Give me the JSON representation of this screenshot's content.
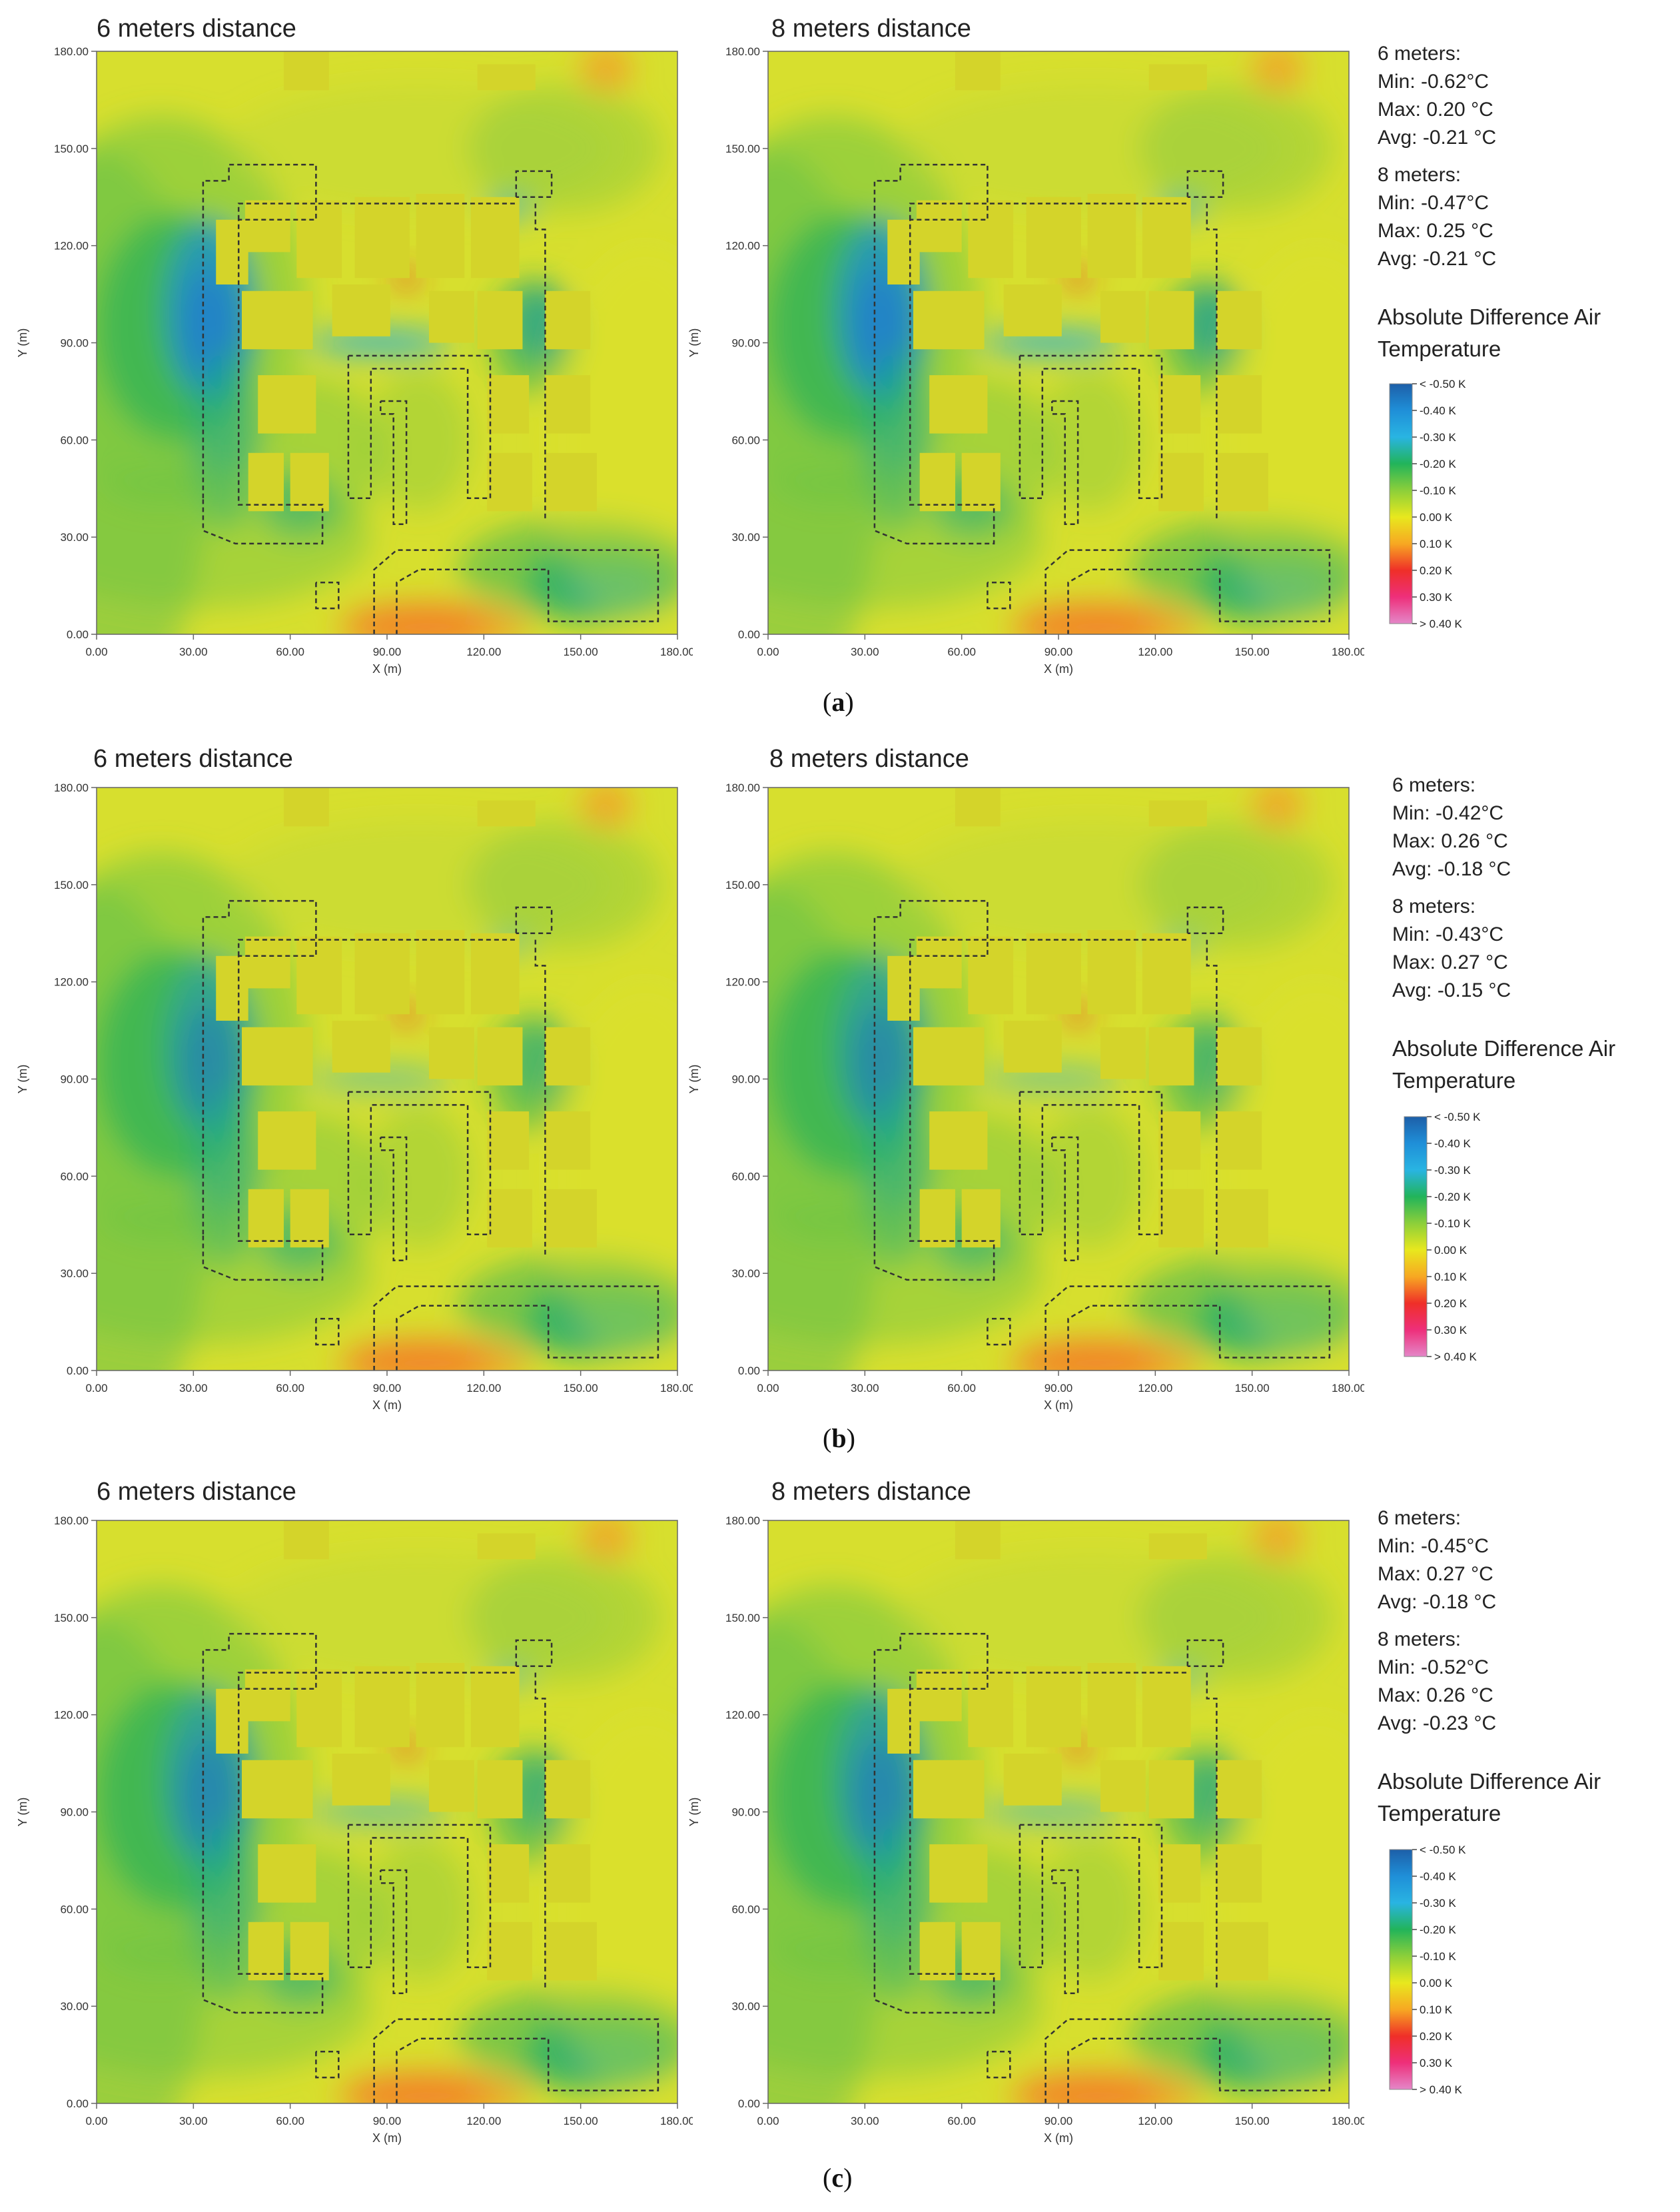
{
  "figure": {
    "panels": [
      {
        "caption_open": "(",
        "caption_letter": "a",
        "caption_close": ")",
        "left_title": "6 meters distance",
        "right_title": "8 meters distance",
        "stats": {
          "six_header": "6 meters:",
          "six_min": "Min: -0.62°C",
          "six_max": "Max: 0.20 °C",
          "six_avg": "Avg:  -0.21 °C",
          "eight_header": "8 meters:",
          "eight_min": "Min: -0.47°C",
          "eight_max": "Max: 0.25 °C",
          "eight_avg": "Avg:  -0.21 °C"
        },
        "legend_title_1": "Absolute Difference Air",
        "legend_title_2": "Temperature"
      },
      {
        "caption_open": "(",
        "caption_letter": "b",
        "caption_close": ")",
        "left_title": "6 meters distance",
        "right_title": "8 meters distance",
        "stats": {
          "six_header": "6 meters:",
          "six_min": "Min: -0.42°C",
          "six_max": "Max: 0.26 °C",
          "six_avg": "Avg:  -0.18 °C",
          "eight_header": "8 meters:",
          "eight_min": "Min: -0.43°C",
          "eight_max": "Max: 0.27 °C",
          "eight_avg": "Avg:  -0.15 °C"
        },
        "legend_title_1": "Absolute Difference Air",
        "legend_title_2": "Temperature"
      },
      {
        "caption_open": "(",
        "caption_letter": "c",
        "caption_close": ")",
        "left_title": "6 meters distance",
        "right_title": "8 meters distance",
        "stats": {
          "six_header": "6 meters:",
          "six_min": "Min: -0.45°C",
          "six_max": "Max: 0.27 °C",
          "six_avg": "Avg:  -0.18 °C",
          "eight_header": "8 meters:",
          "eight_min": "Min: -0.52°C",
          "eight_max": "Max: 0.26 °C",
          "eight_avg": "Avg:  -0.23 °C"
        },
        "legend_title_1": "Absolute Difference Air",
        "legend_title_2": "Temperature"
      }
    ]
  },
  "chart_data": {
    "type": "heatmap",
    "title": "Absolute Difference Air Temperature",
    "xlabel": "X (m)",
    "ylabel": "Y (m)",
    "xlim": [
      0,
      180
    ],
    "ylim": [
      0,
      180
    ],
    "x_ticks": [
      "0.00",
      "30.00",
      "60.00",
      "90.00",
      "120.00",
      "150.00",
      "180.00"
    ],
    "y_ticks": [
      "0.00",
      "30.00",
      "60.00",
      "90.00",
      "120.00",
      "150.00",
      "180.00"
    ],
    "legend": {
      "labels": [
        "< -0.50 K",
        "-0.40  K",
        "-0.30  K",
        "-0.20  K",
        "-0.10  K",
        "0.00  K",
        "0.10  K",
        "0.20  K",
        "0.30  K",
        "> 0.40 K"
      ],
      "colors": [
        "#1d5fa8",
        "#1f8fd8",
        "#29b4e2",
        "#22b45a",
        "#8ccf3a",
        "#e8e81e",
        "#f7a822",
        "#ef2f28",
        "#ee2f7a",
        "#e487c8"
      ]
    },
    "maps": [
      {
        "panel": "a",
        "distance": "6 meters",
        "min": -0.62,
        "max": 0.2,
        "avg": -0.21
      },
      {
        "panel": "a",
        "distance": "8 meters",
        "min": -0.47,
        "max": 0.25,
        "avg": -0.21
      },
      {
        "panel": "b",
        "distance": "6 meters",
        "min": -0.42,
        "max": 0.26,
        "avg": -0.18
      },
      {
        "panel": "b",
        "distance": "8 meters",
        "min": -0.43,
        "max": 0.27,
        "avg": -0.15
      },
      {
        "panel": "c",
        "distance": "6 meters",
        "min": -0.45,
        "max": 0.27,
        "avg": -0.18
      },
      {
        "panel": "c",
        "distance": "8 meters",
        "min": -0.52,
        "max": 0.26,
        "avg": -0.23
      }
    ]
  }
}
